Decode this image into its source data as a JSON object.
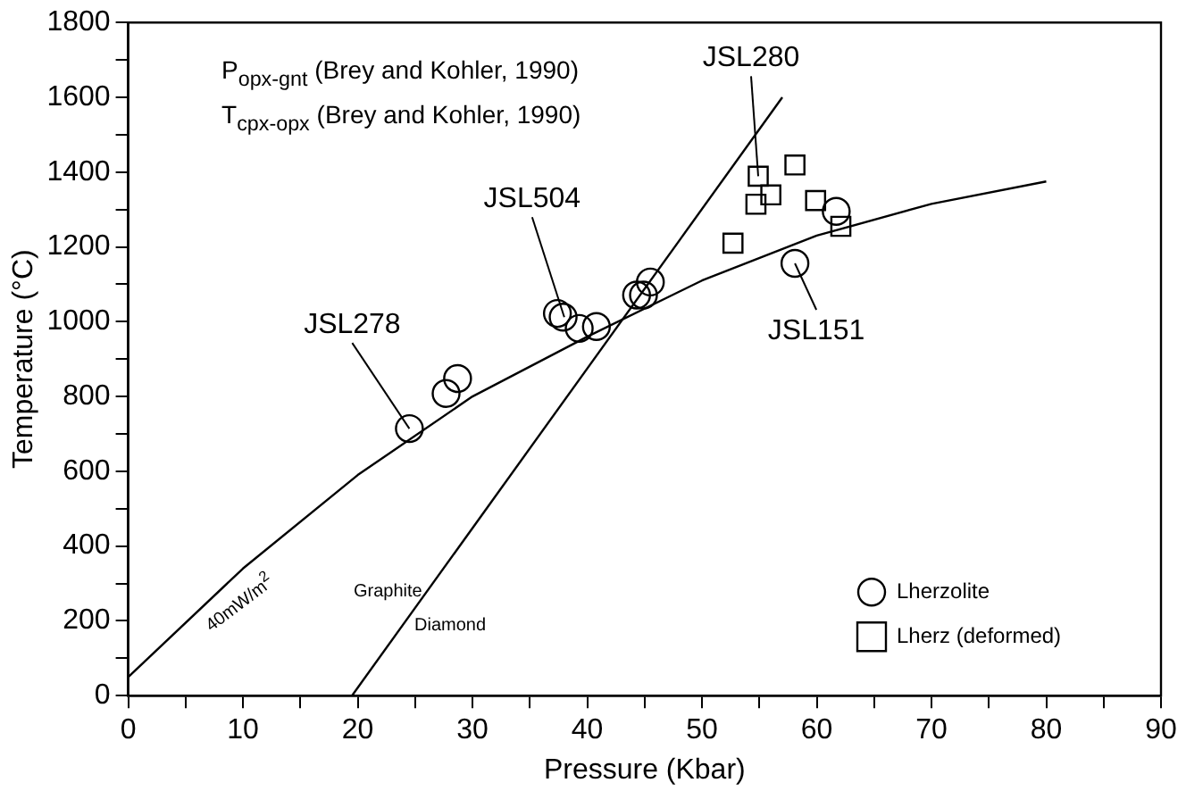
{
  "chart_data": {
    "type": "scatter",
    "xlabel": "Pressure (Kbar)",
    "ylabel": "Temperature (°C)",
    "xlim": [
      0,
      90
    ],
    "ylim": [
      0,
      1800
    ],
    "xticks": [
      0,
      {
        "value": 5,
        "label": null
      },
      10,
      {
        "value": 15,
        "label": null
      },
      20,
      {
        "value": 25,
        "label": null
      },
      30,
      {
        "value": 35,
        "label": null
      },
      40,
      {
        "value": 45,
        "label": null
      },
      50,
      {
        "value": 55,
        "label": null
      },
      60,
      {
        "value": 65,
        "label": null
      },
      70,
      {
        "value": 75,
        "label": null
      },
      80,
      {
        "value": 85,
        "label": null
      },
      90
    ],
    "yticks": [
      0,
      {
        "value": 100,
        "label": null
      },
      200,
      {
        "value": 300,
        "label": null
      },
      400,
      {
        "value": 500,
        "label": null
      },
      600,
      {
        "value": 700,
        "label": null
      },
      800,
      {
        "value": 900,
        "label": null
      },
      1000,
      {
        "value": 1100,
        "label": null
      },
      1200,
      {
        "value": 1300,
        "label": null
      },
      1400,
      {
        "value": 1500,
        "label": null
      },
      1600,
      {
        "value": 1700,
        "label": null
      },
      1800
    ],
    "grid": false,
    "legend": "bottom right",
    "series": [
      {
        "type": "line",
        "color": "#000000",
        "marker": "none",
        "x": [
          0,
          10,
          20,
          30,
          40,
          50,
          60,
          70,
          80
        ],
        "values": [
          50,
          340,
          590,
          800,
          960,
          1110,
          1230,
          1315,
          1375
        ]
      },
      {
        "type": "line",
        "color": "#000000",
        "marker": "none",
        "x": [
          19.5,
          57
        ],
        "values": [
          0,
          1600
        ]
      },
      {
        "type": "scatter",
        "name": "Lherzolite",
        "color": "#000000",
        "marker": "circle",
        "x": [
          24.5,
          27.7,
          28.7,
          37.4,
          37.9,
          39.3,
          40.8,
          44.3,
          44.9,
          45.5,
          61.7,
          58.1
        ],
        "values": [
          714,
          808,
          848,
          1022,
          1012,
          982,
          987,
          1071,
          1071,
          1106,
          1295,
          1156
        ]
      },
      {
        "type": "scatter",
        "name": "Lherz (deformed)",
        "color": "#000000",
        "marker": "square",
        "x": [
          54.9,
          54.7,
          56.0,
          58.1,
          59.9,
          52.7,
          62.1
        ],
        "values": [
          1389,
          1314,
          1339,
          1419,
          1324,
          1210,
          1255
        ]
      }
    ],
    "annotations": [
      "P$_{opx-gnt}$ (Brey and Kohler, 1990)",
      "T$_{cpx-opx}$ (Brey and Kohler, 1990)",
      "40mW/m$^{2}$",
      "Graphite",
      "Diamond",
      {
        "text": "JSL278",
        "x": 24.5,
        "y": 714
      },
      {
        "text": "JSL504",
        "x": 38,
        "y": 1012
      },
      {
        "text": "JSL280",
        "x": 54.9,
        "y": 1389
      },
      {
        "text": "JSL151",
        "x": 58.1,
        "y": 1156
      }
    ]
  }
}
